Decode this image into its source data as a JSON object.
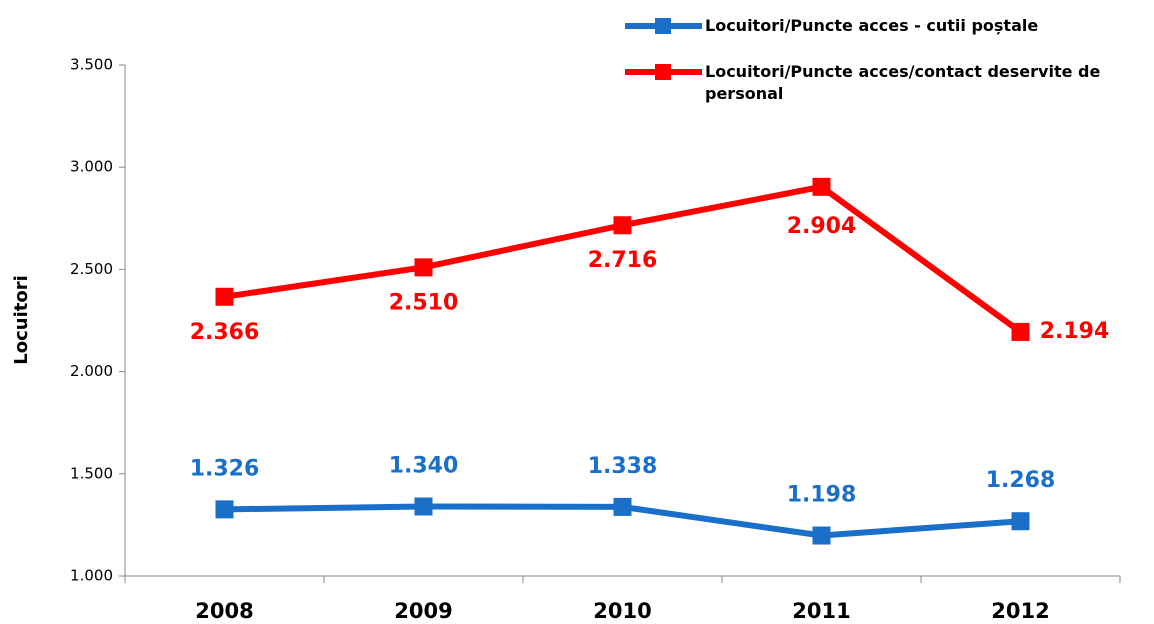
{
  "chart_data": {
    "type": "line",
    "y_label": "Locuitori",
    "categories": [
      "2008",
      "2009",
      "2010",
      "2011",
      "2012"
    ],
    "series": [
      {
        "name": "Locuitori/Puncte acces - cutii poștale",
        "color": "#1a6fc9",
        "values": [
          1326,
          1340,
          1338,
          1198,
          1268
        ],
        "value_labels": [
          "1.326",
          "1.340",
          "1.338",
          "1.198",
          "1.268"
        ]
      },
      {
        "name": "Locuitori/Puncte acces/contact deservite de personal",
        "color": "#ff0000",
        "values": [
          2366,
          2510,
          2716,
          2904,
          2194
        ],
        "value_labels": [
          "2.366",
          "2.510",
          "2.716",
          "2.904",
          "2.194"
        ]
      }
    ],
    "ylim": [
      1000,
      3500
    ],
    "yticks": [
      {
        "value": 1000,
        "label": "1.000"
      },
      {
        "value": 1500,
        "label": "1.500"
      },
      {
        "value": 2000,
        "label": "2.000"
      },
      {
        "value": 2500,
        "label": "2.500"
      },
      {
        "value": 3000,
        "label": "3.000"
      },
      {
        "value": 3500,
        "label": "3.500"
      }
    ],
    "legend": "top-right"
  }
}
